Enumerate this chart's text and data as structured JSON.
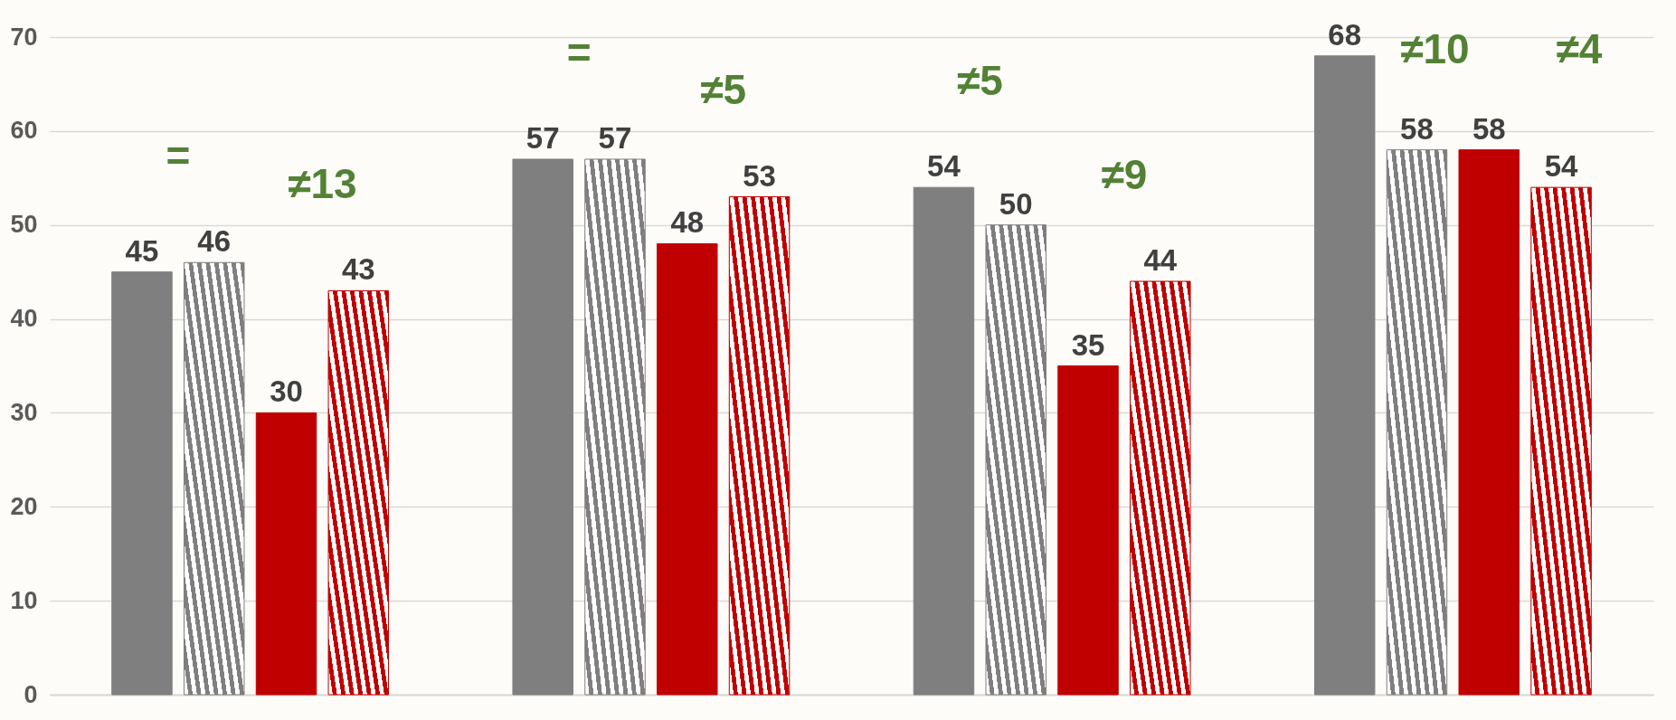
{
  "chart_data": {
    "type": "bar",
    "categories": [
      null,
      null,
      null,
      null
    ],
    "series": [
      {
        "color": "#7f7f7f",
        "values": [
          45,
          57,
          54,
          68
        ]
      },
      {
        "color": "#7f7f7f",
        "values": [
          46,
          57,
          50,
          58
        ]
      },
      {
        "color": "#c00000",
        "values": [
          30,
          48,
          35,
          58
        ]
      },
      {
        "color": "#c00000",
        "values": [
          43,
          53,
          44,
          54
        ]
      }
    ],
    "ylim": [
      0,
      70
    ],
    "yticks": [
      0,
      10,
      20,
      30,
      40,
      50,
      60,
      70
    ],
    "grid": "y",
    "data_labels": true,
    "annotations": [
      "=",
      "≠13",
      "=",
      "≠5",
      "≠5",
      "≠9",
      "≠10",
      "≠4"
    ]
  }
}
